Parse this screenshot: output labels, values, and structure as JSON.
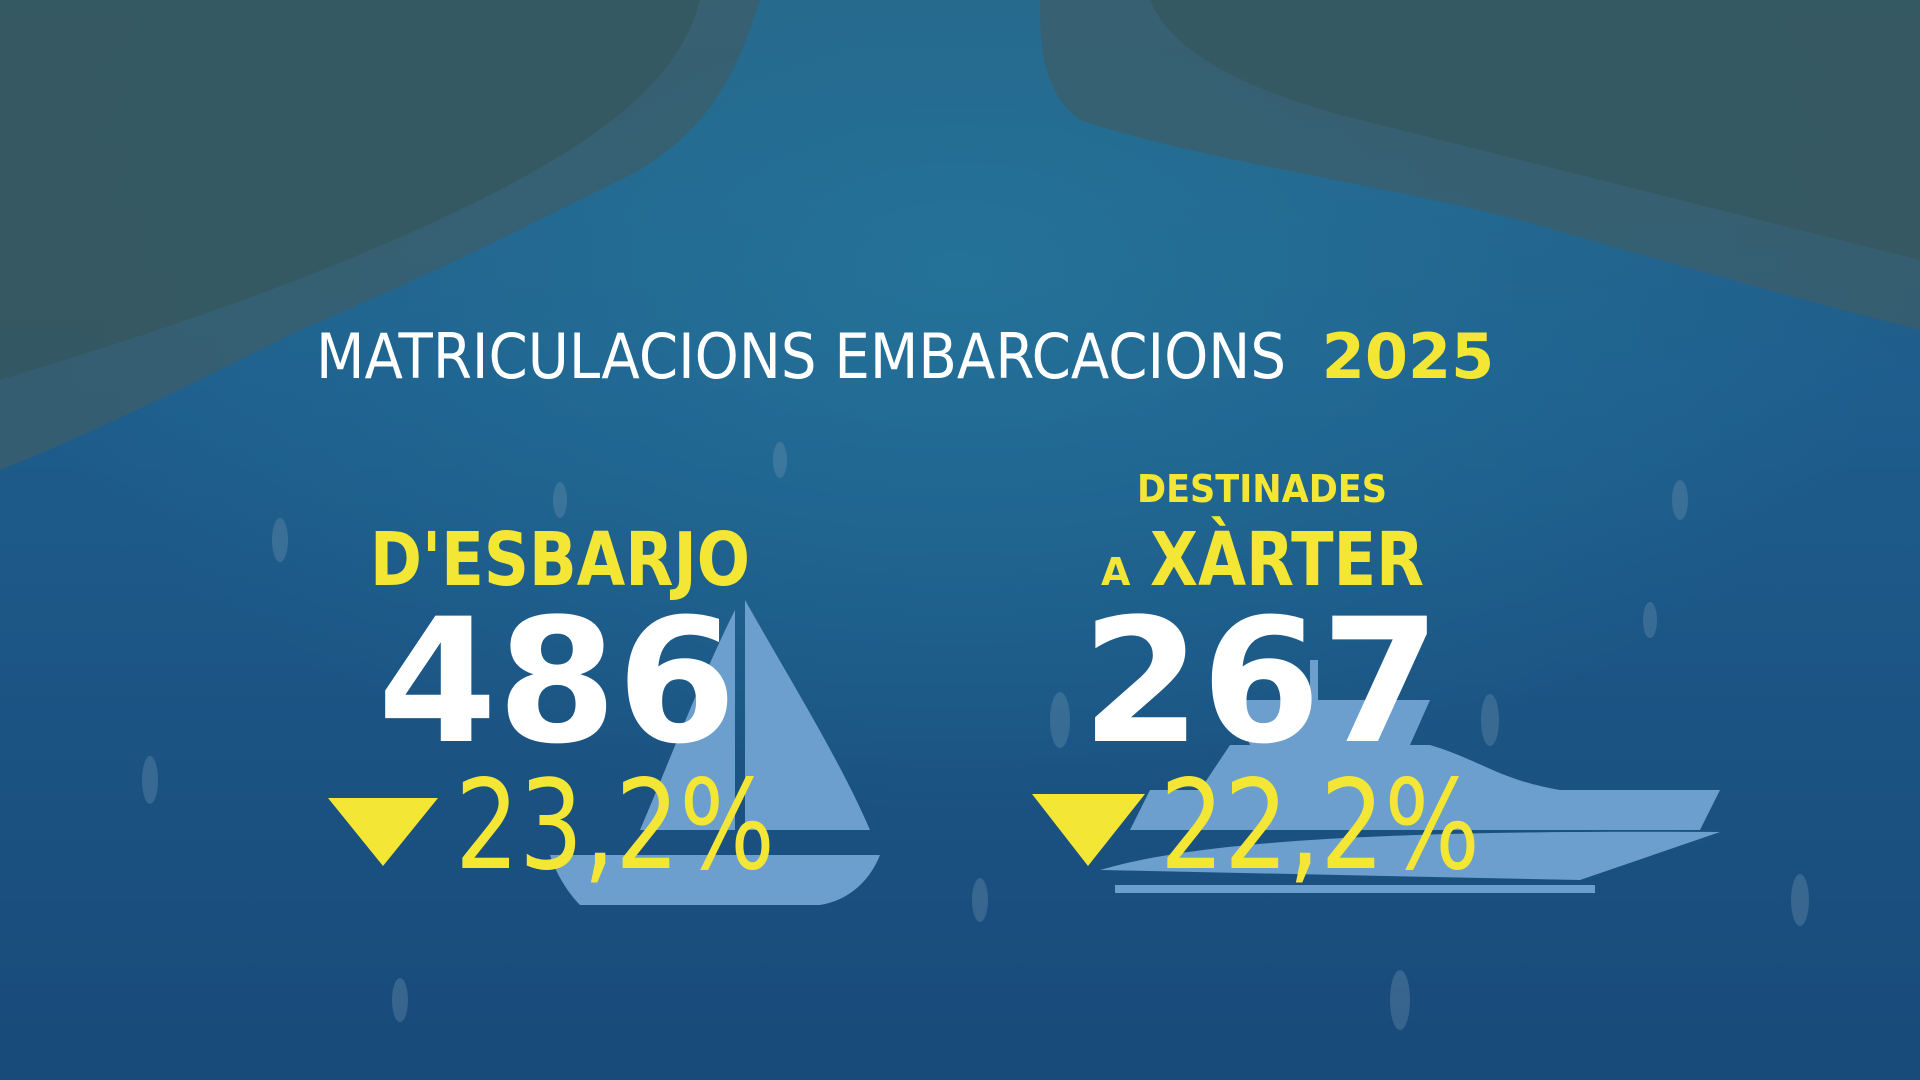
{
  "title": {
    "text": "MATRICULACIONS EMBARCACIONS",
    "year": "2025"
  },
  "stats": [
    {
      "label": "D'ESBARJO",
      "value": "486",
      "change": "23,2%"
    },
    {
      "label_top": "DESTINADES",
      "label_prefix": "A",
      "label": "XÀRTER",
      "value": "267",
      "change": "22,2%"
    }
  ]
}
